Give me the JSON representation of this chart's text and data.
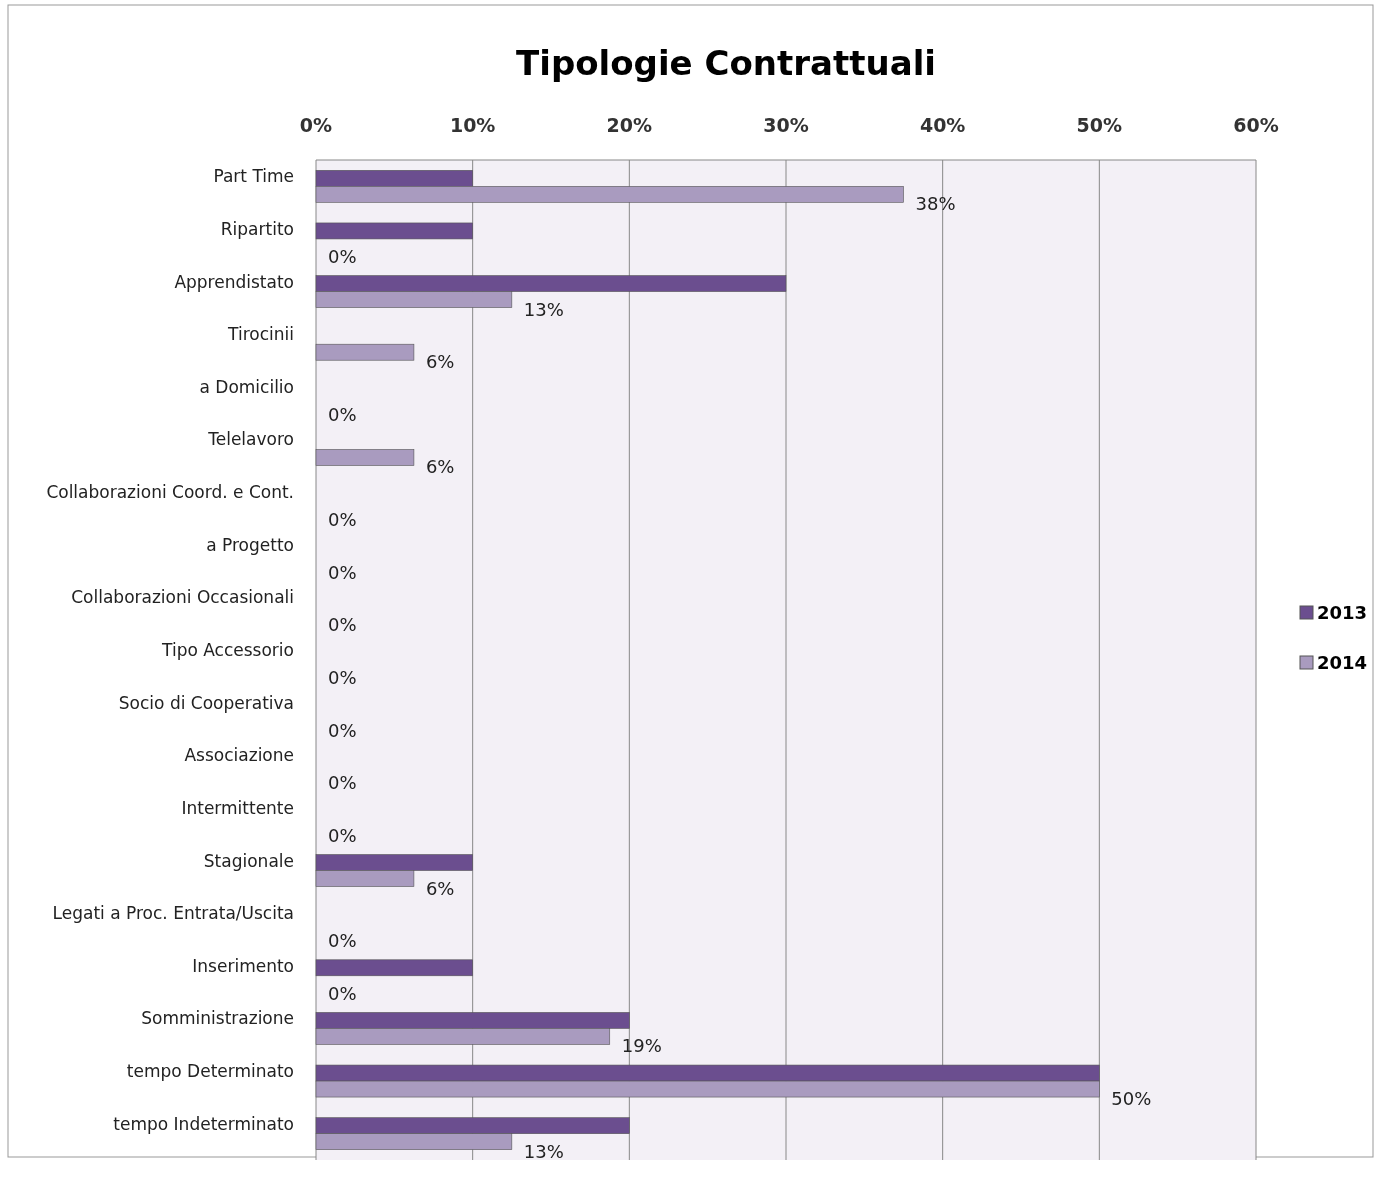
{
  "chart_data": {
    "type": "bar",
    "orientation": "horizontal",
    "title": "Tipologie Contrattuali",
    "categories": [
      "Part Time",
      "Ripartito",
      "Apprendistato",
      "Tirocinii",
      "a Domicilio",
      "Telelavoro",
      "Collaborazioni Coord. e Cont.",
      "a Progetto",
      "Collaborazioni Occasionali",
      "Tipo Accessorio",
      "Socio di Cooperativa",
      "Associazione",
      "Intermittente",
      "Stagionale",
      "Legati a Proc. Entrata/Uscita",
      "Inserimento",
      "Somministrazione",
      "tempo Determinato",
      "tempo Indeterminato"
    ],
    "series": [
      {
        "name": "2013",
        "color": "#6b4e8f",
        "values": [
          10,
          10,
          30,
          0,
          0,
          0,
          0,
          0,
          0,
          0,
          0,
          0,
          0,
          10,
          0,
          10,
          20,
          50,
          20
        ]
      },
      {
        "name": "2014",
        "color": "#a99bbf",
        "values": [
          37.5,
          0,
          12.5,
          6.25,
          0,
          6.25,
          0,
          0,
          0,
          0,
          0,
          0,
          0,
          6.25,
          0,
          0,
          18.75,
          50,
          12.5
        ],
        "value_labels": [
          "38%",
          "0%",
          "13%",
          "6%",
          "0%",
          "6%",
          "0%",
          "0%",
          "0%",
          "0%",
          "0%",
          "0%",
          "0%",
          "6%",
          "0%",
          "0%",
          "19%",
          "50%",
          "13%"
        ]
      }
    ],
    "xlim": [
      0,
      60
    ],
    "xticks": [
      {
        "value": 0,
        "label": "0%"
      },
      {
        "value": 10,
        "label": "10%"
      },
      {
        "value": 20,
        "label": "20%"
      },
      {
        "value": 30,
        "label": "30%"
      },
      {
        "value": 40,
        "label": "40%"
      },
      {
        "value": 50,
        "label": "50%"
      },
      {
        "value": 60,
        "label": "60%"
      }
    ],
    "grid": "x",
    "legend": "right"
  }
}
